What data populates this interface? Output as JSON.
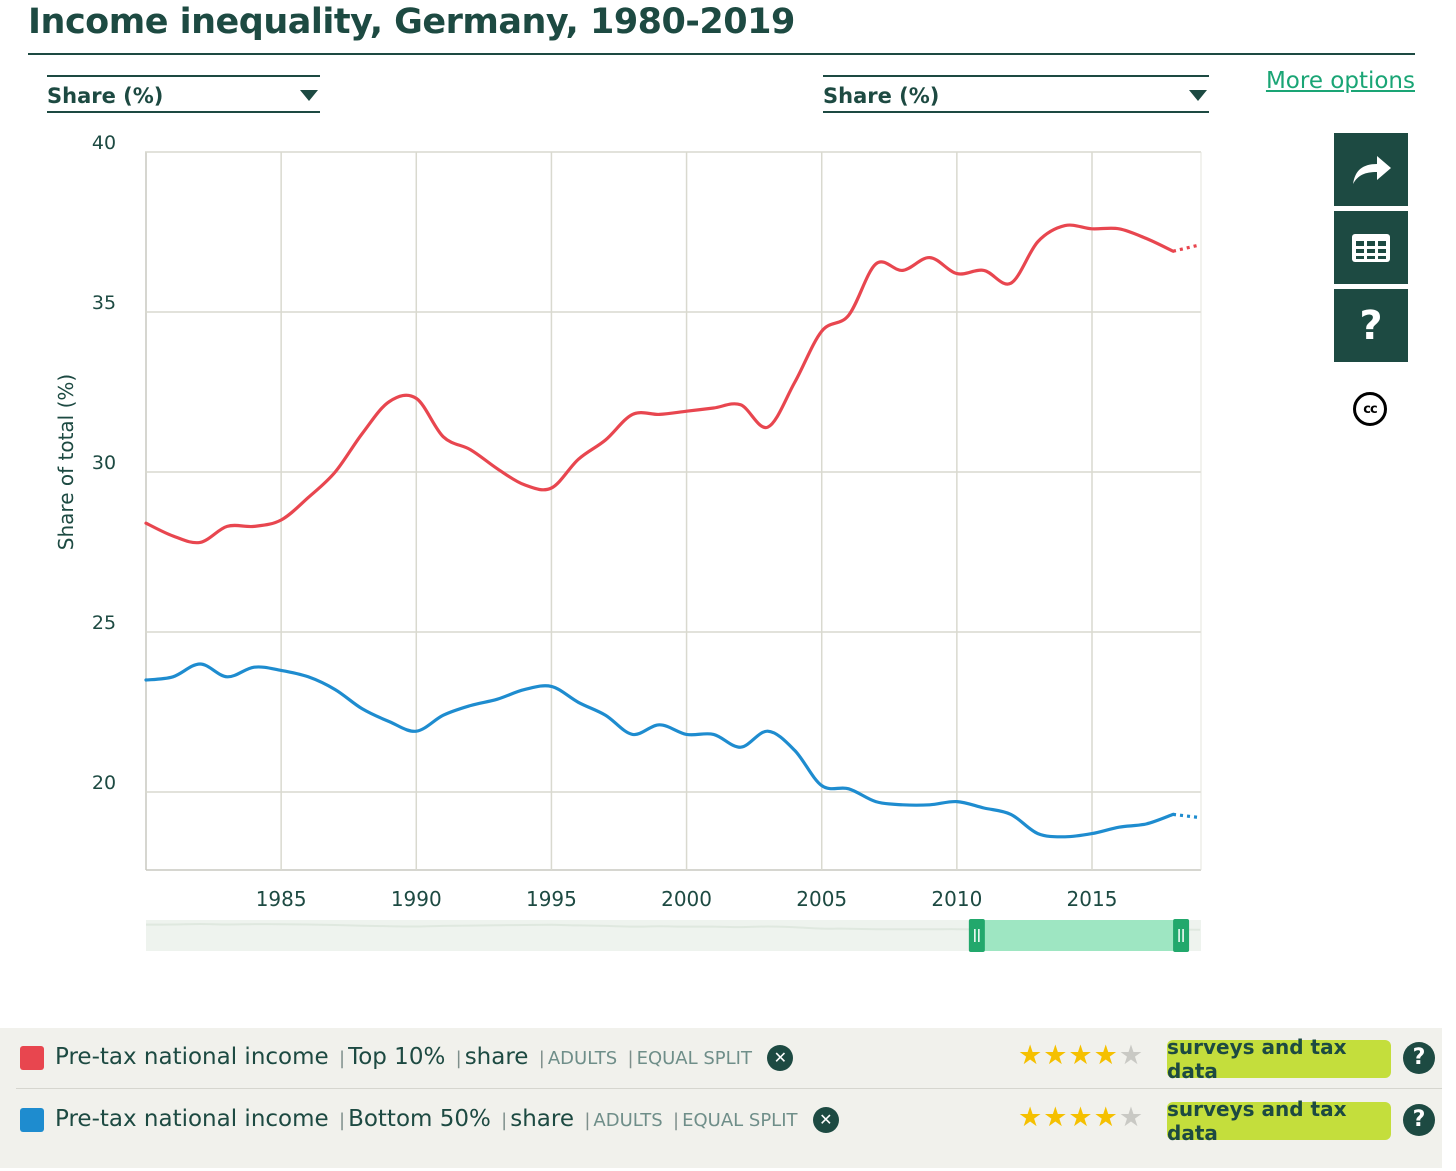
{
  "title": "Income inequality, Germany, 1980-2019",
  "left_selector": {
    "label": "Share (%)"
  },
  "right_selector": {
    "label": "Share (%)"
  },
  "more_options": "More options",
  "side_buttons": {
    "share_icon": "share-arrow-icon",
    "table_icon": "table-icon",
    "help_label": "?",
    "license": "cc"
  },
  "chart_data": {
    "type": "line",
    "ylabel": "Share of total (%)",
    "xlabel": "",
    "ylim": [
      17.6,
      40
    ],
    "xlim": [
      1980,
      2019
    ],
    "yticks": [
      20,
      25,
      30,
      35,
      40
    ],
    "xticks": [
      1985,
      1990,
      1995,
      2000,
      2005,
      2010,
      2015
    ],
    "grid": true,
    "x": [
      1980,
      1981,
      1982,
      1983,
      1984,
      1985,
      1986,
      1987,
      1988,
      1989,
      1990,
      1991,
      1992,
      1993,
      1994,
      1995,
      1996,
      1997,
      1998,
      1999,
      2000,
      2001,
      2002,
      2003,
      2004,
      2005,
      2006,
      2007,
      2008,
      2009,
      2010,
      2011,
      2012,
      2013,
      2014,
      2015,
      2016,
      2017,
      2018,
      2019
    ],
    "projected_from": 2018,
    "series": [
      {
        "name": "Top 10%",
        "color": "#e8464f",
        "values": [
          28.4,
          28.0,
          27.8,
          28.3,
          28.3,
          28.5,
          29.2,
          30.0,
          31.2,
          32.2,
          32.3,
          31.1,
          30.7,
          30.1,
          29.6,
          29.5,
          30.4,
          31.0,
          31.8,
          31.8,
          31.9,
          32.0,
          32.1,
          31.4,
          32.8,
          34.4,
          34.9,
          36.5,
          36.3,
          36.7,
          36.2,
          36.3,
          35.9,
          37.2,
          37.7,
          37.6,
          37.6,
          37.3,
          36.9,
          37.1
        ]
      },
      {
        "name": "Bottom 50%",
        "color": "#1e8ccf",
        "values": [
          23.5,
          23.6,
          24.0,
          23.6,
          23.9,
          23.8,
          23.6,
          23.2,
          22.6,
          22.2,
          21.9,
          22.4,
          22.7,
          22.9,
          23.2,
          23.3,
          22.8,
          22.4,
          21.8,
          22.1,
          21.8,
          21.8,
          21.4,
          21.9,
          21.3,
          20.2,
          20.1,
          19.7,
          19.6,
          19.6,
          19.7,
          19.5,
          19.3,
          18.7,
          18.6,
          18.7,
          18.9,
          19.0,
          19.3,
          19.2
        ]
      }
    ]
  },
  "range_selector": {
    "start_year": 2010,
    "end_year": 2018
  },
  "legend": [
    {
      "color": "#e8464f",
      "indicator": "Pre-tax national income",
      "group": "Top 10%",
      "measure": "share",
      "population": "ADULTS",
      "split": "EQUAL SPLIT",
      "stars_on": "★★★★",
      "stars_off": "★",
      "source": "surveys and tax data",
      "help": "?",
      "close": "✕"
    },
    {
      "color": "#1e8ccf",
      "indicator": "Pre-tax national income",
      "group": "Bottom 50%",
      "measure": "share",
      "population": "ADULTS",
      "split": "EQUAL SPLIT",
      "stars_on": "★★★★",
      "stars_off": "★",
      "source": "surveys and tax data",
      "help": "?",
      "close": "✕"
    }
  ]
}
